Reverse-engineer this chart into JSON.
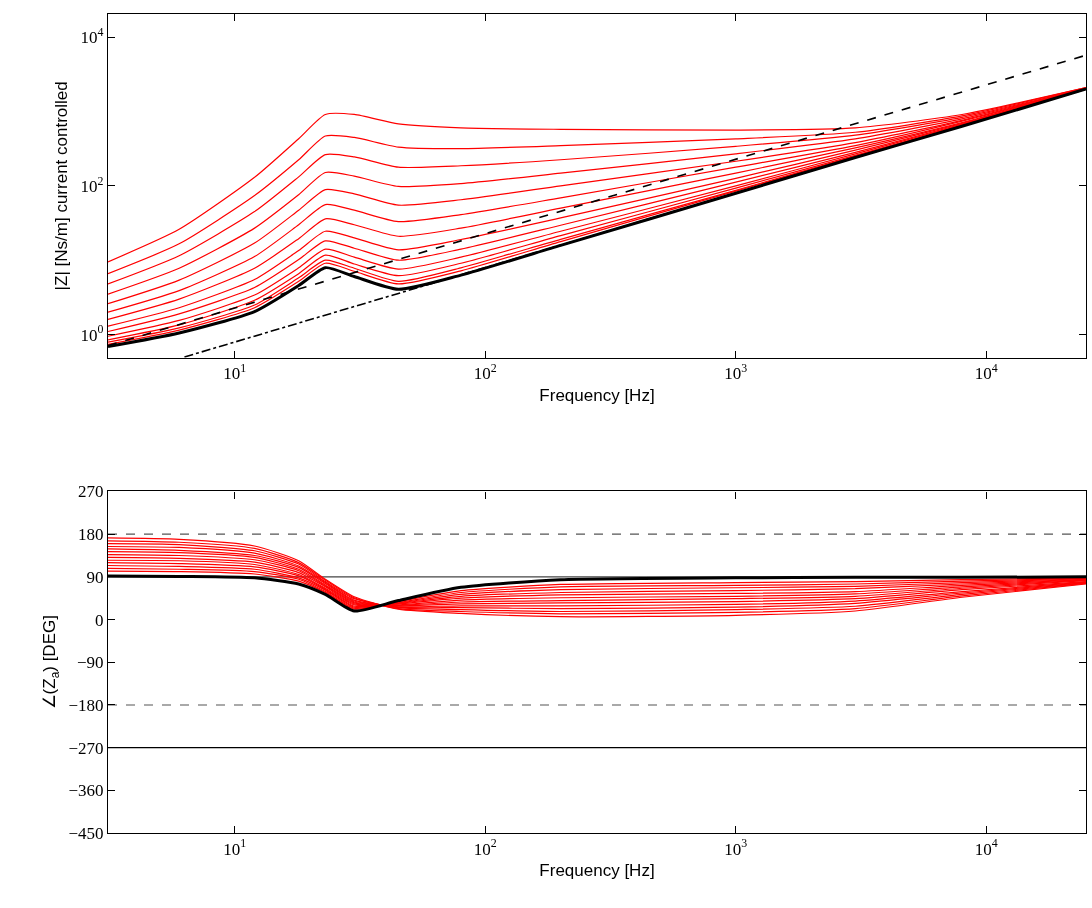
{
  "chart_data": [
    {
      "type": "line",
      "xlabel": "Frequency [Hz]",
      "ylabel": "|Z| [Ns/m] current controlled",
      "log": "xy",
      "grid": false,
      "xlim": [
        3.12,
        25000
      ],
      "ylim": [
        0.49,
        20400
      ],
      "xticks": [
        {
          "value": 10,
          "label": "10$^{1}$"
        },
        {
          "value": 100,
          "label": "10$^{2}$"
        },
        {
          "value": 1000,
          "label": "10$^{3}$"
        },
        {
          "value": 10000,
          "label": "10$^{4}$"
        }
      ],
      "yticks": [
        {
          "value": 1,
          "label": "10$^{0}$"
        },
        {
          "value": 100,
          "label": "10$^{2}$"
        },
        {
          "value": 10000,
          "label": "10$^{4}$"
        }
      ],
      "x": [
        3.12,
        6,
        12,
        18,
        23,
        30,
        45,
        80,
        200,
        1000,
        3000,
        8000,
        25000
      ],
      "series": [
        {
          "color": "#ff0000",
          "values": [
            9.5,
            26,
            130,
            430,
            910,
            910,
            680,
            600,
            575,
            560,
            600,
            910,
            2090
          ]
        },
        {
          "color": "#ff0000",
          "values": [
            6.6,
            16.6,
            74,
            224,
            468,
            447,
            331,
            316,
            347,
            427,
            525,
            871,
            2090
          ]
        },
        {
          "color": "#ff0000",
          "values": [
            4.8,
            11.5,
            45,
            132,
            263,
            245,
            178,
            186,
            224,
            339,
            479,
            832,
            2040
          ]
        },
        {
          "color": "#ff0000",
          "values": [
            3.5,
            7.8,
            27,
            76,
            151,
            135,
            98,
            107,
            148,
            269,
            427,
            794,
            2040
          ]
        },
        {
          "color": "#ff0000",
          "values": [
            2.6,
            5.4,
            17,
            47,
            89,
            78,
            55,
            65,
            100,
            214,
            380,
            759,
            2040
          ]
        },
        {
          "color": "#ff0000",
          "values": [
            2.0,
            3.9,
            11.2,
            30,
            56,
            47,
            33,
            41,
            69,
            178,
            347,
            741,
            2040
          ]
        },
        {
          "color": "#ff0000",
          "values": [
            1.6,
            3.0,
            7.8,
            19.5,
            36,
            30,
            21,
            27,
            50,
            148,
            324,
            708,
            2040
          ]
        },
        {
          "color": "#ff0000",
          "values": [
            1.3,
            2.3,
            5.5,
            13.5,
            24.5,
            20,
            13.8,
            19,
            37,
            126,
            302,
            692,
            2040
          ]
        },
        {
          "color": "#ff0000",
          "values": [
            1.1,
            1.9,
            4.3,
            10.2,
            18.2,
            14.5,
            10,
            14.1,
            29.5,
            112,
            282,
            676,
            2000
          ]
        },
        {
          "color": "#ff0000",
          "values": [
            0.95,
            1.55,
            3.4,
            7.9,
            14.1,
            11,
            7.6,
            11,
            24.5,
            100,
            269,
            661,
            2000
          ]
        },
        {
          "color": "#ff0000",
          "values": [
            0.85,
            1.35,
            2.9,
            6.6,
            11.7,
            8.9,
            6.2,
            9.1,
            21.4,
            93,
            257,
            646,
            2000
          ]
        },
        {
          "color": "#ff0000",
          "values": [
            0.79,
            1.23,
            2.5,
            5.8,
            10,
            7.8,
            5.2,
            7.9,
            19.1,
            87,
            251,
            646,
            2000
          ]
        },
        {
          "color": "#ff0000",
          "values": [
            0.74,
            1.15,
            2.3,
            5.2,
            9.1,
            7.1,
            4.8,
            7.2,
            17.8,
            85,
            245,
            631,
            2000
          ]
        },
        {
          "color": "#000000",
          "values": [
            0.69,
            1.05,
            2.04,
            4.57,
            7.94,
            6.03,
            4.07,
            6.31,
            15.8,
            79.4,
            240,
            631,
            2000
          ]
        },
        {
          "color": "#000000",
          "line_style": "dashed",
          "x": [
            3.12,
            25000
          ],
          "values": [
            0.71,
            5700
          ]
        },
        {
          "color": "#000000",
          "line_style": "dashdot",
          "x": [
            6.3,
            25000
          ],
          "values": [
            0.5,
            2000
          ]
        }
      ]
    },
    {
      "type": "line",
      "xlabel": "Frequency [Hz]",
      "ylabel": "∠(Z$_{a}$) [DEG]",
      "log": "x",
      "grid": false,
      "xlim": [
        3.12,
        25000
      ],
      "ylim": [
        -450,
        270
      ],
      "xticks": [
        {
          "value": 10,
          "label": "10$^{1}$"
        },
        {
          "value": 100,
          "label": "10$^{2}$"
        },
        {
          "value": 1000,
          "label": "10$^{3}$"
        },
        {
          "value": 10000,
          "label": "10$^{4}$"
        }
      ],
      "yticks": [
        270,
        180,
        90,
        0,
        -90,
        -180,
        -270,
        -360,
        -450
      ],
      "x": [
        3.12,
        6,
        12,
        18,
        23,
        30,
        45,
        80,
        200,
        1000,
        3000,
        8000,
        25000
      ],
      "ref_lines": [
        {
          "axis": "y",
          "value": 180,
          "color": "#555555",
          "line_style": "dashed"
        },
        {
          "axis": "y",
          "value": 90,
          "color": "#444444",
          "line_style": "solid"
        },
        {
          "axis": "y",
          "value": -180,
          "color": "#555555",
          "line_style": "dashed"
        },
        {
          "axis": "y",
          "value": -270,
          "color": "#000000",
          "line_style": "solid"
        }
      ],
      "series": [
        {
          "color": "#ff0000",
          "values": [
            172,
            169,
            155,
            124,
            85,
            48,
            22,
            13,
            6,
            9,
            18,
            47,
            75
          ]
        },
        {
          "color": "#ff0000",
          "values": [
            166,
            163,
            150,
            120,
            83,
            46,
            23,
            17,
            12,
            15,
            23,
            50,
            76
          ]
        },
        {
          "color": "#ff0000",
          "values": [
            160,
            158,
            145,
            117,
            80,
            44,
            25,
            21,
            17,
            21,
            28,
            53,
            77
          ]
        },
        {
          "color": "#ff0000",
          "values": [
            154,
            152,
            140,
            113,
            78,
            41,
            26,
            25,
            23,
            26,
            34,
            56,
            78
          ]
        },
        {
          "color": "#ff0000",
          "values": [
            149,
            146,
            135,
            110,
            76,
            39,
            27,
            29,
            29,
            32,
            39,
            59,
            79
          ]
        },
        {
          "color": "#ff0000",
          "values": [
            143,
            141,
            131,
            106,
            73,
            37,
            29,
            33,
            35,
            38,
            44,
            63,
            80
          ]
        },
        {
          "color": "#ff0000",
          "values": [
            137,
            135,
            126,
            103,
            71,
            35,
            30,
            37,
            40,
            44,
            49,
            66,
            82
          ]
        },
        {
          "color": "#ff0000",
          "values": [
            131,
            129,
            121,
            99,
            69,
            33,
            31,
            41,
            46,
            49,
            54,
            69,
            83
          ]
        },
        {
          "color": "#ff0000",
          "values": [
            125,
            124,
            116,
            95,
            66,
            31,
            33,
            45,
            52,
            55,
            59,
            72,
            84
          ]
        },
        {
          "color": "#ff0000",
          "values": [
            120,
            118,
            111,
            92,
            64,
            28,
            34,
            49,
            57,
            61,
            65,
            75,
            85
          ]
        },
        {
          "color": "#ff0000",
          "values": [
            114,
            112,
            106,
            88,
            62,
            26,
            35,
            53,
            63,
            67,
            70,
            78,
            86
          ]
        },
        {
          "color": "#ff0000",
          "values": [
            108,
            106,
            101,
            85,
            59,
            24,
            36,
            57,
            69,
            72,
            75,
            81,
            87
          ]
        },
        {
          "color": "#ff0000",
          "values": [
            102,
            101,
            96,
            81,
            57,
            22,
            38,
            61,
            74,
            78,
            80,
            84,
            88
          ]
        },
        {
          "color": "#000000",
          "values": [
            92,
            91,
            88,
            75,
            53,
            18,
            40,
            68,
            84,
            88,
            89,
            89,
            90
          ]
        }
      ]
    }
  ]
}
